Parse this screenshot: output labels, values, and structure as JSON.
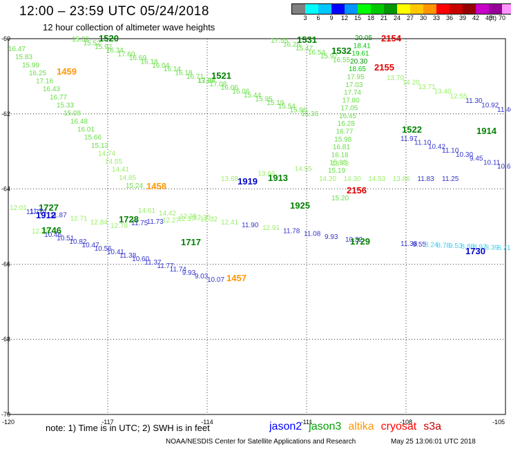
{
  "title": "12:00 – 23:59 UTC 05/24/2018",
  "subtitle": "12 hour collection of altimeter wave heights",
  "colorbar": {
    "colors": [
      "#808080",
      "#00ffff",
      "#00c8ff",
      "#0000ff",
      "#0096ff",
      "#00ff00",
      "#00c800",
      "#009600",
      "#ffff00",
      "#ffc800",
      "#ff9600",
      "#ff0000",
      "#c80000",
      "#960000",
      "#c800c8",
      "#960096",
      "#ff96ff",
      "#000000"
    ],
    "ticks": [
      "3",
      "6",
      "9",
      "12",
      "15",
      "18",
      "21",
      "24",
      "27",
      "30",
      "33",
      "36",
      "39",
      "42",
      "45",
      "70"
    ],
    "unit": "(ft)"
  },
  "chart_data": {
    "type": "scatter",
    "xaxis": {
      "ticks": [
        "-120",
        "-117",
        "-114",
        "-111",
        "-108",
        "-105"
      ],
      "range": [
        -120,
        -105
      ]
    },
    "yaxis": {
      "ticks": [
        "-60",
        "-62",
        "-64",
        "-66",
        "-68",
        "-70"
      ],
      "range": [
        -70,
        -60
      ]
    },
    "grid": true,
    "passes": [
      {
        "label": "1459",
        "color": "#ff9600",
        "points": [
          [
            "16.47",
            "#66dd44"
          ],
          [
            "15.83",
            "#66dd44"
          ],
          [
            "15.99",
            "#66dd44"
          ],
          [
            "16.25",
            "#66dd44"
          ],
          [
            "17.16",
            "#66dd44"
          ],
          [
            "16.43",
            "#66dd44"
          ],
          [
            "16.77",
            "#66dd44"
          ],
          [
            "15.33",
            "#66dd44"
          ],
          [
            "15.08",
            "#66dd44"
          ],
          [
            "16.48",
            "#66dd44"
          ],
          [
            "16.01",
            "#66dd44"
          ],
          [
            "15.66",
            "#66dd44"
          ],
          [
            "15.13",
            "#66dd44"
          ],
          [
            "14.74",
            "#99ee66"
          ],
          [
            "14.55",
            "#99ee66"
          ],
          [
            "14.41",
            "#99ee66"
          ],
          [
            "14.85",
            "#99ee66"
          ],
          [
            "15.24",
            "#66dd44"
          ]
        ]
      },
      {
        "label": "1520",
        "color": "#008000",
        "points": [
          [
            "15.32",
            "#66dd44"
          ],
          [
            "15.52",
            "#66dd44"
          ],
          [
            "15.92",
            "#66dd44"
          ],
          [
            "16.34",
            "#66dd44"
          ],
          [
            "17.60",
            "#66dd44"
          ],
          [
            "16.69",
            "#66dd44"
          ],
          [
            "16.18",
            "#66dd44"
          ],
          [
            "16.04",
            "#66dd44"
          ],
          [
            "16.14",
            "#66dd44"
          ],
          [
            "16.18",
            "#66dd44"
          ],
          [
            "16.71",
            "#66dd44"
          ],
          [
            "17.08",
            "#66dd44"
          ],
          [
            "17.08",
            "#66dd44"
          ],
          [
            "16.06",
            "#66dd44"
          ],
          [
            "16.06",
            "#66dd44"
          ],
          [
            "15.44",
            "#66dd44"
          ],
          [
            "15.95",
            "#66dd44"
          ],
          [
            "15.19",
            "#66dd44"
          ],
          [
            "15.54",
            "#66dd44"
          ],
          [
            "15.96",
            "#66dd44"
          ],
          [
            "16.36",
            "#66dd44"
          ]
        ]
      },
      {
        "label": "1521",
        "color": "#008000",
        "points": [
          [
            "13.37",
            "#66dd44"
          ]
        ]
      },
      {
        "label": "1531",
        "color": "#008000",
        "points": [
          [
            "17.55",
            "#66dd44"
          ],
          [
            "16.26",
            "#66dd44"
          ],
          [
            "15.47",
            "#66dd44"
          ],
          [
            "16.54",
            "#66dd44"
          ],
          [
            "15.97",
            "#66dd44"
          ],
          [
            "16.55",
            "#66dd44"
          ]
        ]
      },
      {
        "label": "1532",
        "color": "#008000",
        "points": [
          [
            "20.05",
            "#009600"
          ],
          [
            "18.41",
            "#00c800"
          ],
          [
            "19.61",
            "#00c800"
          ],
          [
            "20.30",
            "#009600"
          ],
          [
            "18.65",
            "#00c800"
          ],
          [
            "17.95",
            "#66dd44"
          ],
          [
            "17.03",
            "#66dd44"
          ],
          [
            "17.74",
            "#66dd44"
          ],
          [
            "17.80",
            "#66dd44"
          ],
          [
            "17.05",
            "#66dd44"
          ],
          [
            "16.45",
            "#66dd44"
          ],
          [
            "16.28",
            "#66dd44"
          ],
          [
            "16.77",
            "#66dd44"
          ],
          [
            "15.98",
            "#66dd44"
          ],
          [
            "16.81",
            "#66dd44"
          ],
          [
            "16.18",
            "#66dd44"
          ],
          [
            "15.93",
            "#66dd44"
          ],
          [
            "15.19",
            "#66dd44"
          ]
        ]
      },
      {
        "label": "2154",
        "color": "#e00000",
        "points": []
      },
      {
        "label": "2155",
        "color": "#e00000",
        "points": [
          [
            "13.70",
            "#99ee66"
          ],
          [
            "14.20",
            "#99ee66"
          ],
          [
            "13.71",
            "#99ee66"
          ],
          [
            "13.40",
            "#99ee66"
          ],
          [
            "12.55",
            "#99ee66"
          ],
          [
            "11.30",
            "#3333cc"
          ],
          [
            "10.92",
            "#3333cc"
          ],
          [
            "11.46",
            "#3333cc"
          ]
        ]
      },
      {
        "label": "1522",
        "color": "#008000",
        "points": [
          [
            "11.97",
            "#3333cc"
          ],
          [
            "11.10",
            "#3333cc"
          ],
          [
            "10.42",
            "#3333cc"
          ],
          [
            "11.10",
            "#3333cc"
          ],
          [
            "10.30",
            "#3333cc"
          ],
          [
            "9.45",
            "#3333cc"
          ],
          [
            "10.11",
            "#3333cc"
          ],
          [
            "10.68",
            "#3333cc"
          ]
        ]
      },
      {
        "label": "1914",
        "color": "#008000",
        "points": []
      },
      {
        "label": "1458",
        "color": "#ff9600",
        "points": [
          [
            "14.61",
            "#99ee66"
          ],
          [
            "14.42",
            "#99ee66"
          ],
          [
            "12.35",
            "#99ee66"
          ],
          [
            "12.32",
            "#99ee66"
          ],
          [
            "12.41",
            "#99ee66"
          ],
          [
            "11.90",
            "#3333cc"
          ],
          [
            "12.91",
            "#99ee66"
          ],
          [
            "11.78",
            "#3333cc"
          ],
          [
            "11.08",
            "#3333cc"
          ],
          [
            "9.93",
            "#3333cc"
          ],
          [
            "10.32",
            "#3333cc"
          ]
        ]
      },
      {
        "label": "1913",
        "color": "#008000",
        "points": [
          [
            "13.68",
            "#99ee66"
          ],
          [
            "13.66",
            "#99ee66"
          ],
          [
            "14.55",
            "#99ee66"
          ],
          [
            "13.73",
            "#99ee66"
          ]
        ]
      },
      {
        "label": "1919",
        "color": "#0000c8",
        "points": []
      },
      {
        "label": "2156",
        "color": "#e00000",
        "points": [
          [
            "14.20",
            "#99ee66"
          ],
          [
            "14.30",
            "#99ee66"
          ],
          [
            "14.53",
            "#99ee66"
          ],
          [
            "13.86",
            "#99ee66"
          ],
          [
            "11.83",
            "#3333cc"
          ],
          [
            "11.25",
            "#3333cc"
          ]
        ]
      },
      {
        "label": "1925",
        "color": "#008000",
        "points": [
          [
            "15.20",
            "#66dd44"
          ]
        ]
      },
      {
        "label": "1727",
        "color": "#008000",
        "points": [
          [
            "12.01",
            "#99ee66"
          ],
          [
            "11.74",
            "#3333cc"
          ],
          [
            "11.87",
            "#3333cc"
          ],
          [
            "12.71",
            "#99ee66"
          ],
          [
            "12.84",
            "#99ee66"
          ],
          [
            "12.78",
            "#99ee66"
          ]
        ]
      },
      {
        "label": "1912",
        "color": "#0000c8",
        "points": [
          [
            "11.77",
            "#3333cc"
          ]
        ]
      },
      {
        "label": "1728",
        "color": "#008000",
        "points": [
          [
            "11.75",
            "#3333cc"
          ],
          [
            "11.73",
            "#3333cc"
          ],
          [
            "12.27",
            "#99ee66"
          ],
          [
            "12.37",
            "#99ee66"
          ],
          [
            "12.35",
            "#99ee66"
          ]
        ]
      },
      {
        "label": "1746",
        "color": "#008000",
        "points": [
          [
            "12.49",
            "#99ee66"
          ],
          [
            "10.46",
            "#3333cc"
          ],
          [
            "10.51",
            "#3333cc"
          ],
          [
            "10.82",
            "#3333cc"
          ],
          [
            "10.47",
            "#3333cc"
          ],
          [
            "10.56",
            "#3333cc"
          ],
          [
            "10.41",
            "#3333cc"
          ],
          [
            "11.38",
            "#3333cc"
          ],
          [
            "10.60",
            "#3333cc"
          ],
          [
            "11.37",
            "#3333cc"
          ],
          [
            "11.77",
            "#3333cc"
          ],
          [
            "11.74",
            "#3333cc"
          ],
          [
            "9.93",
            "#3333cc"
          ],
          [
            "9.03",
            "#3333cc"
          ],
          [
            "10.07",
            "#3333cc"
          ]
        ]
      },
      {
        "label": "1717",
        "color": "#008000",
        "points": []
      },
      {
        "label": "1457",
        "color": "#ff9600",
        "points": []
      },
      {
        "label": "1729",
        "color": "#008000",
        "points": [
          [
            "11.38",
            "#3333cc"
          ],
          [
            "9.55",
            "#3333cc"
          ],
          [
            "8.24",
            "#44ccee"
          ],
          [
            "8.78",
            "#44ccee"
          ],
          [
            "9.53",
            "#44ccee"
          ],
          [
            "8.88",
            "#44ccee"
          ],
          [
            "8.97",
            "#44ccee"
          ],
          [
            "8.39",
            "#44ccee"
          ],
          [
            "8.71",
            "#44ccee"
          ]
        ]
      },
      {
        "label": "1730",
        "color": "#0000c8",
        "points": []
      }
    ]
  },
  "note": "note:  1) Time is in UTC;  2) SWH is in feet",
  "legend": [
    {
      "name": "jason2",
      "color": "#0000ff"
    },
    {
      "name": "jason3",
      "color": "#00a000"
    },
    {
      "name": "altika",
      "color": "#ff9600"
    },
    {
      "name": "cryosat",
      "color": "#ff0000"
    },
    {
      "name": "s3a",
      "color": "#c80000"
    }
  ],
  "credit": "NOAA/NESDIS Center for Satellite Applications and Research",
  "timestamp": "May 25 13:06:01 UTC 2018"
}
